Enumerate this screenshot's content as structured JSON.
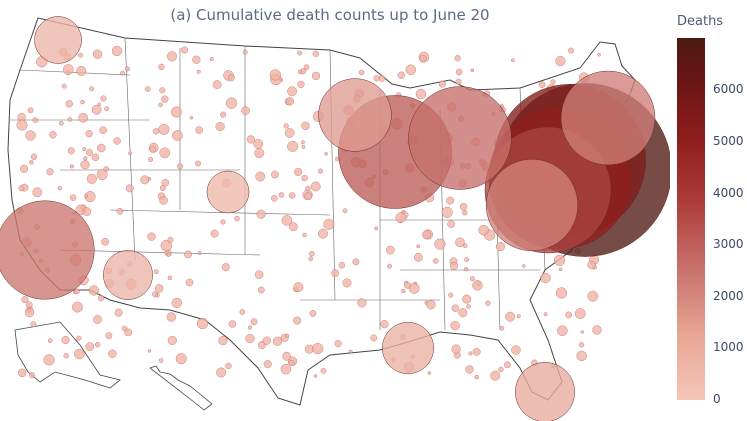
{
  "title": "(a) Cumulative death counts up to June 20",
  "colorbar": {
    "title": "Deaths",
    "ticks": [
      "6000",
      "5000",
      "4000",
      "3000",
      "2000",
      "1000",
      "0"
    ],
    "scale_max": 7000,
    "colors": [
      "#f6c7b8",
      "#c9726c",
      "#8e1d1d",
      "#4b1a12"
    ]
  },
  "map": {
    "type": "bubble-map",
    "region": "United States (counties)",
    "bubbles": [
      {
        "loc": "New York City",
        "deaths": 6800
      },
      {
        "loc": "Long Island",
        "deaths": 5200
      },
      {
        "loc": "Westchester",
        "deaths": 4600
      },
      {
        "loc": "New Jersey",
        "deaths": 3600
      },
      {
        "loc": "Chicago",
        "deaths": 2900
      },
      {
        "loc": "Detroit",
        "deaths": 2400
      },
      {
        "loc": "Los Angeles",
        "deaths": 2200
      },
      {
        "loc": "Boston",
        "deaths": 2000
      },
      {
        "loc": "Philadelphia",
        "deaths": 1900
      },
      {
        "loc": "Minneapolis",
        "deaths": 1200
      },
      {
        "loc": "Miami",
        "deaths": 800
      },
      {
        "loc": "New Orleans",
        "deaths": 600
      },
      {
        "loc": "Seattle",
        "deaths": 500
      },
      {
        "loc": "Phoenix",
        "deaths": 550
      },
      {
        "loc": "Denver",
        "deaths": 400
      }
    ]
  }
}
